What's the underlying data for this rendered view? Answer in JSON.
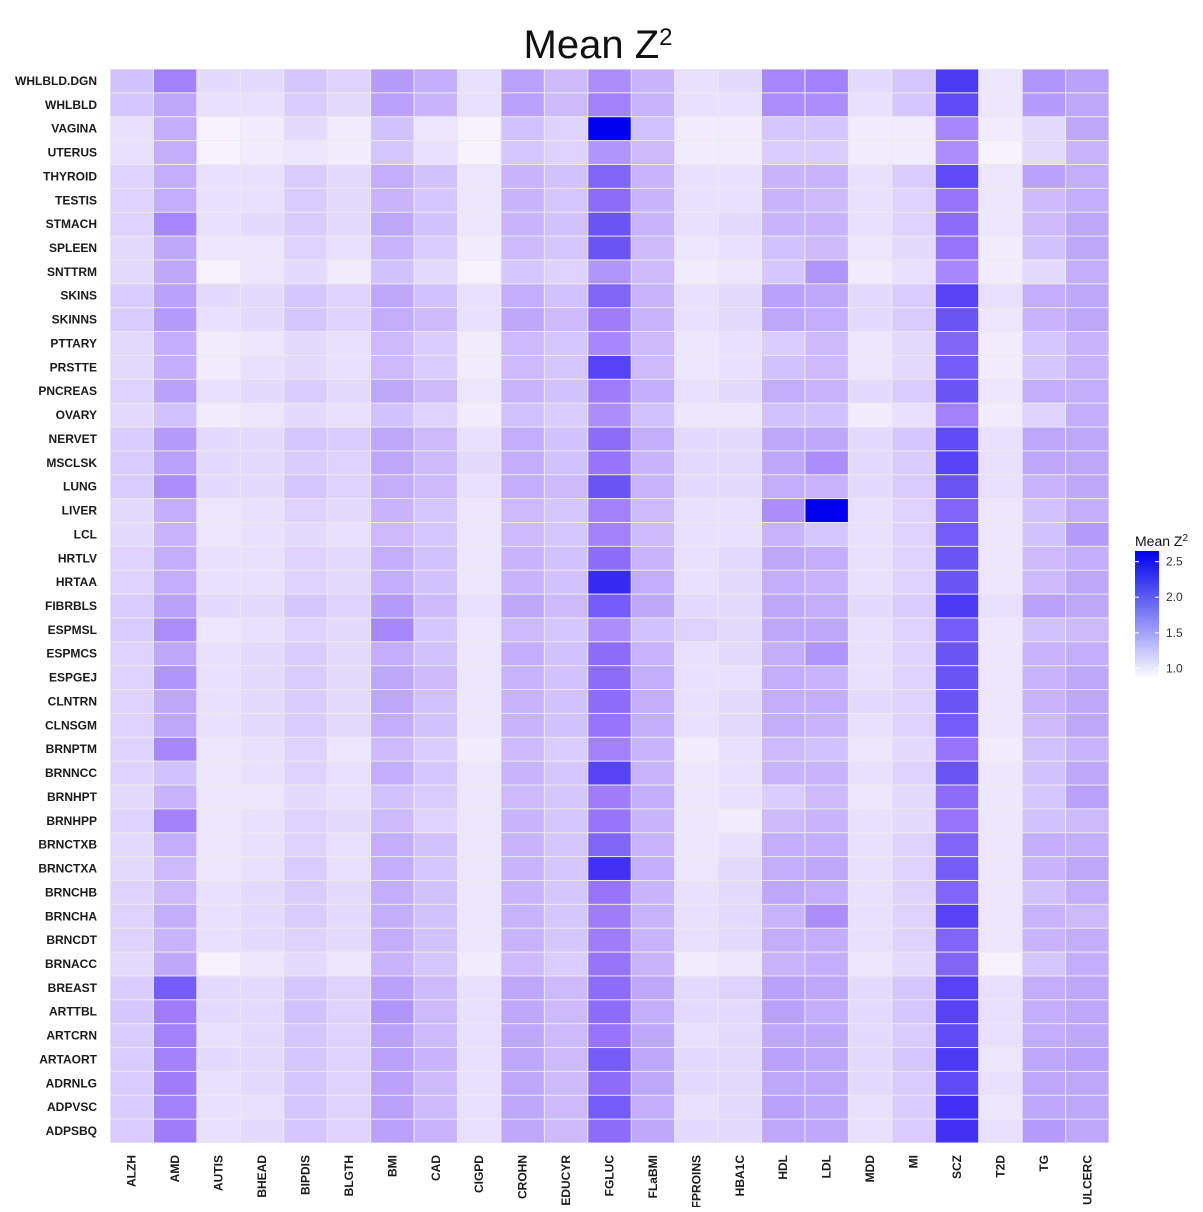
{
  "chart_data": {
    "type": "heatmap",
    "title": "Mean Z",
    "title_superscript": "2",
    "legend": {
      "title": "Mean Z",
      "title_superscript": "2",
      "ticks": [
        2.5,
        2.0,
        1.5,
        1.0
      ],
      "tick_labels": [
        "2.5",
        "2.0",
        "1.5",
        "1.0"
      ],
      "range": [
        0.85,
        2.65
      ],
      "placement": "right",
      "color_low": "#ffffff",
      "color_high": "#0000ee"
    },
    "background": "#ebebeb",
    "x_categories": [
      "ALZH",
      "AMD",
      "AUTIS",
      "BHEAD",
      "BIPDIS",
      "BLGTH",
      "BMI",
      "CAD",
      "CIGPD",
      "CROHN",
      "EDUCYR",
      "FGLUC",
      "FLaBMI",
      "FPROINS",
      "HBA1C",
      "HDL",
      "LDL",
      "MDD",
      "MI",
      "SCZ",
      "T2D",
      "TG",
      "ULCERC"
    ],
    "y_categories": [
      "WHLBLD.DGN",
      "WHLBLD",
      "VAGINA",
      "UTERUS",
      "THYROID",
      "TESTIS",
      "STMACH",
      "SPLEEN",
      "SNTTRM",
      "SKINS",
      "SKINNS",
      "PTTARY",
      "PRSTTE",
      "PNCREAS",
      "OVARY",
      "NERVET",
      "MSCLSK",
      "LUNG",
      "LIVER",
      "LCL",
      "HRTLV",
      "HRTAA",
      "FIBRBLS",
      "ESPMSL",
      "ESPMCS",
      "ESPGEJ",
      "CLNTRN",
      "CLNSGM",
      "BRNPTM",
      "BRNNCC",
      "BRNHPT",
      "BRNHPP",
      "BRNCTXB",
      "BRNCTXA",
      "BRNCHB",
      "BRNCHA",
      "BRNCDT",
      "BRNACC",
      "BREAST",
      "ARTTBL",
      "ARTCRN",
      "ARTAORT",
      "ADRNLG",
      "ADPVSC",
      "ADPSBQ"
    ],
    "values": [
      [
        1.35,
        1.85,
        1.15,
        1.15,
        1.3,
        1.2,
        1.65,
        1.5,
        1.1,
        1.6,
        1.4,
        1.75,
        1.45,
        1.1,
        1.15,
        1.8,
        1.85,
        1.15,
        1.3,
        2.3,
        1.05,
        1.7,
        1.6
      ],
      [
        1.3,
        1.55,
        1.1,
        1.1,
        1.25,
        1.15,
        1.6,
        1.45,
        1.1,
        1.6,
        1.4,
        1.85,
        1.45,
        1.1,
        1.1,
        1.75,
        1.75,
        1.1,
        1.3,
        2.2,
        1.05,
        1.65,
        1.55
      ],
      [
        1.1,
        1.5,
        0.95,
        1.0,
        1.15,
        1.0,
        1.35,
        1.05,
        0.95,
        1.35,
        1.2,
        2.65,
        1.35,
        1.0,
        1.0,
        1.3,
        1.3,
        1.0,
        1.0,
        1.8,
        1.0,
        1.15,
        1.55
      ],
      [
        1.1,
        1.5,
        0.95,
        1.0,
        1.05,
        1.0,
        1.3,
        1.1,
        0.95,
        1.3,
        1.2,
        1.7,
        1.4,
        1.0,
        1.0,
        1.25,
        1.25,
        1.0,
        1.0,
        1.75,
        0.95,
        1.15,
        1.45
      ],
      [
        1.2,
        1.5,
        1.1,
        1.1,
        1.25,
        1.15,
        1.5,
        1.35,
        1.05,
        1.45,
        1.35,
        2.05,
        1.45,
        1.1,
        1.1,
        1.45,
        1.45,
        1.1,
        1.25,
        2.2,
        1.05,
        1.6,
        1.5
      ],
      [
        1.2,
        1.5,
        1.1,
        1.1,
        1.25,
        1.15,
        1.45,
        1.3,
        1.05,
        1.45,
        1.3,
        2.0,
        1.45,
        1.1,
        1.1,
        1.45,
        1.4,
        1.1,
        1.2,
        1.95,
        1.05,
        1.4,
        1.5
      ],
      [
        1.2,
        1.8,
        1.1,
        1.15,
        1.25,
        1.15,
        1.55,
        1.35,
        1.05,
        1.45,
        1.35,
        2.15,
        1.45,
        1.1,
        1.15,
        1.45,
        1.45,
        1.1,
        1.2,
        2.0,
        1.05,
        1.4,
        1.55
      ],
      [
        1.15,
        1.55,
        1.05,
        1.05,
        1.2,
        1.1,
        1.45,
        1.25,
        1.0,
        1.4,
        1.3,
        2.15,
        1.4,
        1.05,
        1.1,
        1.35,
        1.4,
        1.05,
        1.15,
        1.95,
        1.0,
        1.35,
        1.55
      ],
      [
        1.15,
        1.55,
        0.95,
        1.05,
        1.15,
        1.0,
        1.35,
        1.15,
        0.95,
        1.3,
        1.2,
        1.7,
        1.4,
        1.0,
        1.05,
        1.3,
        1.7,
        1.0,
        1.1,
        1.8,
        1.0,
        1.15,
        1.5
      ],
      [
        1.25,
        1.6,
        1.15,
        1.15,
        1.3,
        1.2,
        1.55,
        1.35,
        1.1,
        1.5,
        1.35,
        2.05,
        1.45,
        1.1,
        1.15,
        1.6,
        1.55,
        1.15,
        1.25,
        2.25,
        1.1,
        1.5,
        1.55
      ],
      [
        1.25,
        1.65,
        1.1,
        1.15,
        1.3,
        1.2,
        1.5,
        1.4,
        1.1,
        1.55,
        1.4,
        1.9,
        1.45,
        1.1,
        1.15,
        1.55,
        1.5,
        1.15,
        1.25,
        2.15,
        1.05,
        1.45,
        1.55
      ],
      [
        1.15,
        1.5,
        1.0,
        1.05,
        1.15,
        1.1,
        1.4,
        1.25,
        1.0,
        1.4,
        1.3,
        1.8,
        1.4,
        1.05,
        1.1,
        1.25,
        1.4,
        1.05,
        1.15,
        2.05,
        1.0,
        1.3,
        1.45
      ],
      [
        1.15,
        1.5,
        1.0,
        1.1,
        1.15,
        1.1,
        1.4,
        1.25,
        1.0,
        1.4,
        1.3,
        2.25,
        1.4,
        1.05,
        1.1,
        1.35,
        1.4,
        1.05,
        1.15,
        2.1,
        1.0,
        1.3,
        1.45
      ],
      [
        1.2,
        1.6,
        1.1,
        1.15,
        1.25,
        1.15,
        1.55,
        1.4,
        1.05,
        1.45,
        1.35,
        1.9,
        1.5,
        1.1,
        1.15,
        1.5,
        1.45,
        1.15,
        1.25,
        2.15,
        1.05,
        1.5,
        1.5
      ],
      [
        1.15,
        1.35,
        1.0,
        1.05,
        1.15,
        1.1,
        1.35,
        1.2,
        1.0,
        1.35,
        1.25,
        1.75,
        1.35,
        1.05,
        1.05,
        1.35,
        1.35,
        1.0,
        1.1,
        1.85,
        1.0,
        1.2,
        1.5
      ],
      [
        1.25,
        1.65,
        1.15,
        1.15,
        1.3,
        1.25,
        1.55,
        1.4,
        1.1,
        1.5,
        1.35,
        2.0,
        1.5,
        1.15,
        1.15,
        1.55,
        1.55,
        1.15,
        1.3,
        2.2,
        1.1,
        1.55,
        1.55
      ],
      [
        1.25,
        1.6,
        1.15,
        1.15,
        1.25,
        1.2,
        1.55,
        1.4,
        1.15,
        1.5,
        1.35,
        1.95,
        1.45,
        1.15,
        1.15,
        1.55,
        1.75,
        1.15,
        1.25,
        2.25,
        1.1,
        1.55,
        1.55
      ],
      [
        1.25,
        1.75,
        1.15,
        1.15,
        1.3,
        1.2,
        1.5,
        1.4,
        1.1,
        1.5,
        1.4,
        2.15,
        1.45,
        1.15,
        1.15,
        1.5,
        1.45,
        1.15,
        1.25,
        2.15,
        1.1,
        1.45,
        1.55
      ],
      [
        1.15,
        1.5,
        1.05,
        1.1,
        1.2,
        1.15,
        1.45,
        1.3,
        1.05,
        1.4,
        1.3,
        1.85,
        1.4,
        1.1,
        1.1,
        1.75,
        2.65,
        1.1,
        1.2,
        2.05,
        1.05,
        1.35,
        1.5
      ],
      [
        1.15,
        1.45,
        1.05,
        1.1,
        1.15,
        1.1,
        1.4,
        1.3,
        1.05,
        1.4,
        1.3,
        1.85,
        1.4,
        1.1,
        1.1,
        1.45,
        1.3,
        1.1,
        1.2,
        2.1,
        1.05,
        1.35,
        1.65
      ],
      [
        1.2,
        1.5,
        1.1,
        1.1,
        1.2,
        1.15,
        1.5,
        1.35,
        1.05,
        1.45,
        1.35,
        2.0,
        1.45,
        1.1,
        1.15,
        1.55,
        1.5,
        1.1,
        1.2,
        2.15,
        1.05,
        1.4,
        1.5
      ],
      [
        1.2,
        1.5,
        1.1,
        1.1,
        1.2,
        1.15,
        1.5,
        1.35,
        1.05,
        1.45,
        1.35,
        2.4,
        1.5,
        1.1,
        1.15,
        1.5,
        1.45,
        1.1,
        1.2,
        2.15,
        1.05,
        1.4,
        1.55
      ],
      [
        1.25,
        1.6,
        1.15,
        1.15,
        1.3,
        1.2,
        1.65,
        1.4,
        1.1,
        1.55,
        1.4,
        2.1,
        1.55,
        1.15,
        1.15,
        1.55,
        1.5,
        1.15,
        1.25,
        2.3,
        1.1,
        1.6,
        1.55
      ],
      [
        1.25,
        1.75,
        1.05,
        1.1,
        1.2,
        1.15,
        1.8,
        1.3,
        1.05,
        1.4,
        1.3,
        1.75,
        1.35,
        1.2,
        1.15,
        1.55,
        1.55,
        1.1,
        1.2,
        2.1,
        1.05,
        1.35,
        1.4
      ],
      [
        1.2,
        1.55,
        1.1,
        1.15,
        1.25,
        1.15,
        1.5,
        1.35,
        1.05,
        1.5,
        1.35,
        2.0,
        1.45,
        1.1,
        1.15,
        1.5,
        1.7,
        1.1,
        1.2,
        2.15,
        1.05,
        1.45,
        1.5
      ],
      [
        1.2,
        1.7,
        1.1,
        1.15,
        1.25,
        1.15,
        1.55,
        1.4,
        1.05,
        1.45,
        1.35,
        2.0,
        1.5,
        1.1,
        1.1,
        1.5,
        1.45,
        1.1,
        1.2,
        2.15,
        1.05,
        1.45,
        1.55
      ],
      [
        1.2,
        1.55,
        1.1,
        1.15,
        1.25,
        1.15,
        1.55,
        1.35,
        1.05,
        1.45,
        1.35,
        2.0,
        1.5,
        1.1,
        1.15,
        1.5,
        1.5,
        1.15,
        1.2,
        2.15,
        1.05,
        1.45,
        1.55
      ],
      [
        1.2,
        1.55,
        1.1,
        1.15,
        1.25,
        1.15,
        1.5,
        1.35,
        1.05,
        1.45,
        1.35,
        1.95,
        1.5,
        1.1,
        1.15,
        1.5,
        1.45,
        1.1,
        1.2,
        2.1,
        1.05,
        1.4,
        1.55
      ],
      [
        1.2,
        1.8,
        1.05,
        1.1,
        1.2,
        1.05,
        1.4,
        1.25,
        1.0,
        1.4,
        1.25,
        1.85,
        1.45,
        1.0,
        1.1,
        1.4,
        1.35,
        1.05,
        1.15,
        1.95,
        1.0,
        1.35,
        1.45
      ],
      [
        1.2,
        1.35,
        1.05,
        1.1,
        1.2,
        1.1,
        1.5,
        1.3,
        1.05,
        1.45,
        1.3,
        2.25,
        1.45,
        1.05,
        1.1,
        1.45,
        1.45,
        1.1,
        1.2,
        2.15,
        1.05,
        1.35,
        1.55
      ],
      [
        1.15,
        1.45,
        1.05,
        1.05,
        1.15,
        1.1,
        1.35,
        1.25,
        1.05,
        1.4,
        1.3,
        1.9,
        1.5,
        1.05,
        1.1,
        1.25,
        1.4,
        1.05,
        1.15,
        2.0,
        1.05,
        1.3,
        1.6
      ],
      [
        1.2,
        1.85,
        1.05,
        1.1,
        1.2,
        1.15,
        1.4,
        1.2,
        1.05,
        1.45,
        1.3,
        1.95,
        1.45,
        1.05,
        1.0,
        1.4,
        1.45,
        1.1,
        1.15,
        1.95,
        1.05,
        1.35,
        1.4
      ],
      [
        1.15,
        1.5,
        1.05,
        1.1,
        1.2,
        1.1,
        1.5,
        1.35,
        1.05,
        1.45,
        1.3,
        2.05,
        1.45,
        1.05,
        1.1,
        1.5,
        1.5,
        1.1,
        1.2,
        2.05,
        1.05,
        1.5,
        1.5
      ],
      [
        1.15,
        1.4,
        1.05,
        1.1,
        1.25,
        1.1,
        1.5,
        1.3,
        1.05,
        1.45,
        1.3,
        2.35,
        1.5,
        1.05,
        1.15,
        1.5,
        1.55,
        1.1,
        1.2,
        2.1,
        1.05,
        1.45,
        1.55
      ],
      [
        1.2,
        1.4,
        1.1,
        1.15,
        1.25,
        1.15,
        1.5,
        1.35,
        1.05,
        1.45,
        1.3,
        1.95,
        1.45,
        1.1,
        1.15,
        1.55,
        1.5,
        1.1,
        1.2,
        2.05,
        1.05,
        1.35,
        1.5
      ],
      [
        1.2,
        1.5,
        1.1,
        1.15,
        1.25,
        1.15,
        1.5,
        1.35,
        1.05,
        1.45,
        1.3,
        1.9,
        1.45,
        1.1,
        1.15,
        1.45,
        1.75,
        1.1,
        1.2,
        2.25,
        1.05,
        1.45,
        1.4
      ],
      [
        1.2,
        1.45,
        1.1,
        1.15,
        1.2,
        1.15,
        1.5,
        1.35,
        1.05,
        1.45,
        1.3,
        1.9,
        1.45,
        1.1,
        1.15,
        1.5,
        1.5,
        1.1,
        1.2,
        2.05,
        1.05,
        1.45,
        1.5
      ],
      [
        1.15,
        1.55,
        0.95,
        1.05,
        1.15,
        1.05,
        1.45,
        1.3,
        1.0,
        1.4,
        1.25,
        1.95,
        1.45,
        1.0,
        1.05,
        1.45,
        1.5,
        1.05,
        1.15,
        2.05,
        0.95,
        1.3,
        1.5
      ],
      [
        1.25,
        2.1,
        1.15,
        1.15,
        1.3,
        1.2,
        1.6,
        1.4,
        1.1,
        1.55,
        1.4,
        2.0,
        1.55,
        1.15,
        1.2,
        1.6,
        1.55,
        1.15,
        1.3,
        2.25,
        1.1,
        1.5,
        1.55
      ],
      [
        1.3,
        1.9,
        1.15,
        1.15,
        1.35,
        1.2,
        1.7,
        1.4,
        1.1,
        1.55,
        1.4,
        2.0,
        1.5,
        1.15,
        1.15,
        1.6,
        1.5,
        1.15,
        1.3,
        2.25,
        1.1,
        1.5,
        1.55
      ],
      [
        1.25,
        1.85,
        1.1,
        1.15,
        1.3,
        1.2,
        1.6,
        1.4,
        1.1,
        1.55,
        1.4,
        1.95,
        1.55,
        1.1,
        1.15,
        1.55,
        1.55,
        1.15,
        1.25,
        2.2,
        1.1,
        1.5,
        1.55
      ],
      [
        1.25,
        1.85,
        1.15,
        1.15,
        1.3,
        1.2,
        1.6,
        1.45,
        1.1,
        1.55,
        1.4,
        2.1,
        1.55,
        1.15,
        1.15,
        1.6,
        1.55,
        1.15,
        1.3,
        2.3,
        1.05,
        1.55,
        1.6
      ],
      [
        1.25,
        1.9,
        1.1,
        1.15,
        1.3,
        1.2,
        1.6,
        1.4,
        1.1,
        1.55,
        1.4,
        2.0,
        1.55,
        1.15,
        1.15,
        1.55,
        1.55,
        1.15,
        1.25,
        2.2,
        1.1,
        1.55,
        1.55
      ],
      [
        1.25,
        1.85,
        1.1,
        1.1,
        1.3,
        1.2,
        1.6,
        1.4,
        1.1,
        1.55,
        1.4,
        2.1,
        1.5,
        1.1,
        1.15,
        1.6,
        1.55,
        1.1,
        1.25,
        2.35,
        1.05,
        1.55,
        1.55
      ],
      [
        1.25,
        1.9,
        1.1,
        1.15,
        1.3,
        1.2,
        1.6,
        1.45,
        1.1,
        1.55,
        1.4,
        2.0,
        1.55,
        1.15,
        1.15,
        1.55,
        1.55,
        1.1,
        1.25,
        2.35,
        1.1,
        1.65,
        1.55
      ]
    ]
  }
}
